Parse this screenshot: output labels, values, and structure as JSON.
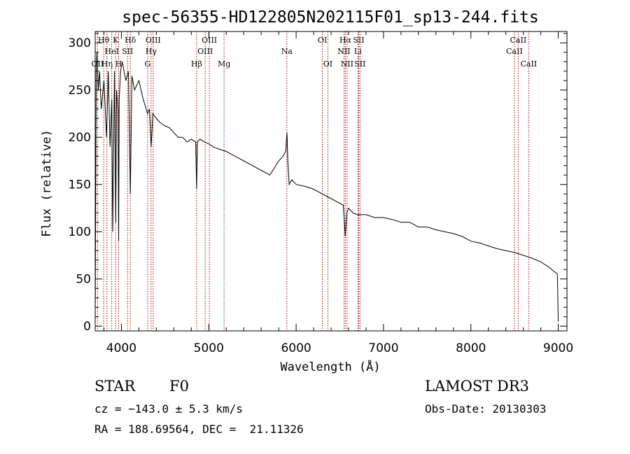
{
  "chart_data": {
    "type": "line",
    "title": "spec-56355-HD122805N202115F01_sp13-244.fits",
    "xlabel": "Wavelength (Å)",
    "ylabel": "Flux (relative)",
    "xlim": [
      3700,
      9100
    ],
    "ylim": [
      -5,
      312
    ],
    "xticks": [
      4000,
      5000,
      6000,
      7000,
      8000,
      9000
    ],
    "yticks": [
      0,
      50,
      100,
      150,
      200,
      250,
      300
    ],
    "grid": false,
    "series": [
      {
        "name": "flux",
        "x": [
          3700,
          3705,
          3712,
          3720,
          3735,
          3750,
          3770,
          3800,
          3830,
          3850,
          3870,
          3890,
          3900,
          3920,
          3935,
          3945,
          3960,
          3968,
          3975,
          3990,
          4010,
          4050,
          4080,
          4102,
          4120,
          4150,
          4200,
          4250,
          4300,
          4320,
          4340,
          4360,
          4400,
          4450,
          4500,
          4550,
          4600,
          4650,
          4700,
          4750,
          4800,
          4850,
          4861,
          4870,
          4900,
          4950,
          5000,
          5050,
          5100,
          5200,
          5300,
          5400,
          5500,
          5600,
          5700,
          5800,
          5850,
          5880,
          5895,
          5905,
          5920,
          5950,
          6000,
          6100,
          6200,
          6300,
          6400,
          6500,
          6540,
          6563,
          6580,
          6600,
          6650,
          6700,
          6800,
          6900,
          7000,
          7100,
          7200,
          7300,
          7400,
          7500,
          7600,
          7700,
          7800,
          7900,
          8000,
          8100,
          8200,
          8300,
          8400,
          8500,
          8600,
          8700,
          8800,
          8900,
          8950,
          8990,
          9000
        ],
        "y": [
          0,
          120,
          270,
          290,
          250,
          270,
          230,
          260,
          200,
          270,
          190,
          240,
          100,
          270,
          110,
          250,
          230,
          90,
          240,
          270,
          280,
          260,
          270,
          140,
          265,
          250,
          260,
          240,
          225,
          230,
          190,
          225,
          220,
          215,
          212,
          210,
          205,
          200,
          200,
          195,
          198,
          195,
          145,
          195,
          198,
          195,
          193,
          190,
          188,
          185,
          180,
          175,
          170,
          165,
          160,
          175,
          180,
          185,
          205,
          175,
          150,
          155,
          150,
          148,
          145,
          140,
          135,
          130,
          128,
          95,
          120,
          125,
          120,
          118,
          118,
          115,
          115,
          113,
          110,
          110,
          105,
          105,
          102,
          100,
          98,
          95,
          90,
          88,
          85,
          82,
          80,
          78,
          75,
          72,
          68,
          62,
          58,
          55,
          5
        ]
      }
    ],
    "lines": [
      {
        "label": "OII",
        "x": 3727,
        "row": 3
      },
      {
        "label": "Hθ",
        "x": 3797,
        "row": 1
      },
      {
        "label": "Hη",
        "x": 3835,
        "row": 3
      },
      {
        "label": "HeI",
        "x": 3889,
        "row": 2
      },
      {
        "label": "K",
        "x": 3934,
        "row": 1
      },
      {
        "label": "H",
        "x": 3968,
        "row": 3
      },
      {
        "label": "SII",
        "x": 4070,
        "row": 2
      },
      {
        "label": "Hδ",
        "x": 4102,
        "row": 1
      },
      {
        "label": "G",
        "x": 4300,
        "row": 3
      },
      {
        "label": "Hγ",
        "x": 4340,
        "row": 2
      },
      {
        "label": "OIII",
        "x": 4363,
        "row": 1
      },
      {
        "label": "Hβ",
        "x": 4861,
        "row": 3
      },
      {
        "label": "OIII",
        "x": 4959,
        "row": 2
      },
      {
        "label": "OIII",
        "x": 5007,
        "row": 1
      },
      {
        "label": "Mg",
        "x": 5175,
        "row": 3
      },
      {
        "label": "Na",
        "x": 5894,
        "row": 2
      },
      {
        "label": "OI",
        "x": 6300,
        "row": 1
      },
      {
        "label": "OI",
        "x": 6363,
        "row": 3
      },
      {
        "label": "NII",
        "x": 6548,
        "row": 2
      },
      {
        "label": "Hα",
        "x": 6563,
        "row": 1
      },
      {
        "label": "NII",
        "x": 6583,
        "row": 3
      },
      {
        "label": "Li",
        "x": 6707,
        "row": 2
      },
      {
        "label": "SII",
        "x": 6716,
        "row": 1
      },
      {
        "label": "SII",
        "x": 6731,
        "row": 3
      },
      {
        "label": "CaII",
        "x": 8498,
        "row": 2
      },
      {
        "label": "CaII",
        "x": 8542,
        "row": 1
      },
      {
        "label": "CaII",
        "x": 8662,
        "row": 3
      }
    ]
  },
  "info": {
    "class": "STAR",
    "subclass": "F0",
    "survey": "LAMOST DR3",
    "cz": "cz = −143.0 ± 5.3 km/s",
    "obsdate": "Obs-Date: 20130303",
    "radec": "RA = 188.69564, DEC =  21.11326"
  },
  "colors": {
    "line_marker": "#b00000",
    "spectrum": "#000000"
  }
}
